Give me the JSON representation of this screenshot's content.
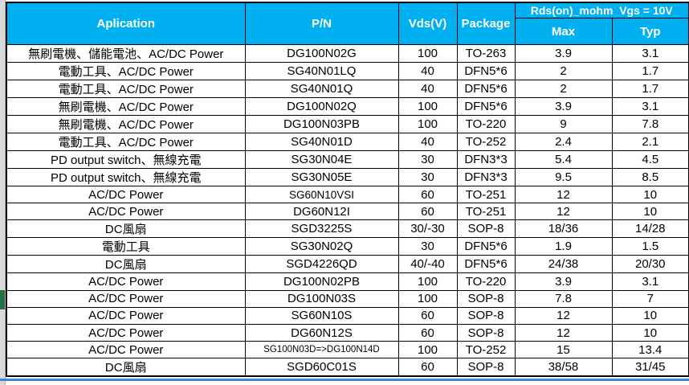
{
  "colors": {
    "header_bg": "#00B0F0",
    "header_text": "#FFFFFF",
    "grid_border": "#000000",
    "bottom_pane_line": "#3E86D8",
    "selection_green": "#217346",
    "gutter_gray": "#D9D9D9"
  },
  "header": {
    "application": "Aplication",
    "pn": "P/N",
    "vds": "Vds(V)",
    "package": "Package",
    "rds_group": "Rds(on)_mohm  Vgs = 10V",
    "max": "Max",
    "typ": "Typ"
  },
  "rows": [
    {
      "application": "無刷電機、儲能電池、AC/DC Power",
      "pn": "DG100N02G",
      "vds": "100",
      "package": "TO-263",
      "max": "3.9",
      "typ": "3.1"
    },
    {
      "application": "電動工具、AC/DC Power",
      "pn": "SG40N01LQ",
      "vds": "40",
      "package": "DFN5*6",
      "max": "2",
      "typ": "1.7"
    },
    {
      "application": "電動工具、AC/DC Power",
      "pn": "SG40N01Q",
      "vds": "40",
      "package": "DFN5*6",
      "max": "2",
      "typ": "1.7"
    },
    {
      "application": "無刷電機、AC/DC Power",
      "pn": "DG100N02Q",
      "vds": "100",
      "package": "DFN5*6",
      "max": "3.9",
      "typ": "3.1"
    },
    {
      "application": "無刷電機、AC/DC Power",
      "pn": "DG100N03PB",
      "vds": "100",
      "package": "TO-220",
      "max": "9",
      "typ": "7.8"
    },
    {
      "application": "電動工具、AC/DC Power",
      "pn": "SG40N01D",
      "vds": "40",
      "package": "TO-252",
      "max": "2.4",
      "typ": "2.1"
    },
    {
      "application": "PD output switch、無線充電",
      "pn": "SG30N04E",
      "vds": "30",
      "package": "DFN3*3",
      "max": "5.4",
      "typ": "4.5"
    },
    {
      "application": "PD output switch、無線充電",
      "pn": "SG30N05E",
      "vds": "30",
      "package": "DFN3*3",
      "max": "9.5",
      "typ": "8.5"
    },
    {
      "application": "AC/DC Power",
      "pn": "SG60N10VSI",
      "vds": "60",
      "package": "TO-251",
      "max": "12",
      "typ": "10"
    },
    {
      "application": "AC/DC Power",
      "pn": "DG60N12I",
      "vds": "60",
      "package": "TO-251",
      "max": "12",
      "typ": "10"
    },
    {
      "application": "DC風扇",
      "pn": "SGD3225S",
      "vds": "30/-30",
      "package": "SOP-8",
      "max": "18/36",
      "typ": "14/28"
    },
    {
      "application": "電動工具",
      "pn": "SG30N02Q",
      "vds": "30",
      "package": "DFN5*6",
      "max": "1.9",
      "typ": "1.5"
    },
    {
      "application": "DC風扇",
      "pn": "SGD4226QD",
      "vds": "40/-40",
      "package": "DFN5*6",
      "max": "24/38",
      "typ": "20/30"
    },
    {
      "application": "AC/DC Power",
      "pn": "DG100N02PB",
      "vds": "100",
      "package": "TO-220",
      "max": "3.9",
      "typ": "3.1"
    },
    {
      "application": "AC/DC Power",
      "pn": "DG100N03S",
      "vds": "100",
      "package": "SOP-8",
      "max": "7.8",
      "typ": "7"
    },
    {
      "application": "AC/DC Power",
      "pn": "SG60N10S",
      "vds": "60",
      "package": "SOP-8",
      "max": "12",
      "typ": "10"
    },
    {
      "application": "AC/DC Power",
      "pn": "DG60N12S",
      "vds": "60",
      "package": "SOP-8",
      "max": "12",
      "typ": "10"
    },
    {
      "application": "AC/DC Power",
      "pn": "SG100N03D=>DG100N14D",
      "vds": "100",
      "package": "TO-252",
      "max": "15",
      "typ": "13.4"
    },
    {
      "application": "DC風扇",
      "pn": "SGD60C01S",
      "vds": "60",
      "package": "SOP-8",
      "max": "38/58",
      "typ": "31/45"
    }
  ]
}
